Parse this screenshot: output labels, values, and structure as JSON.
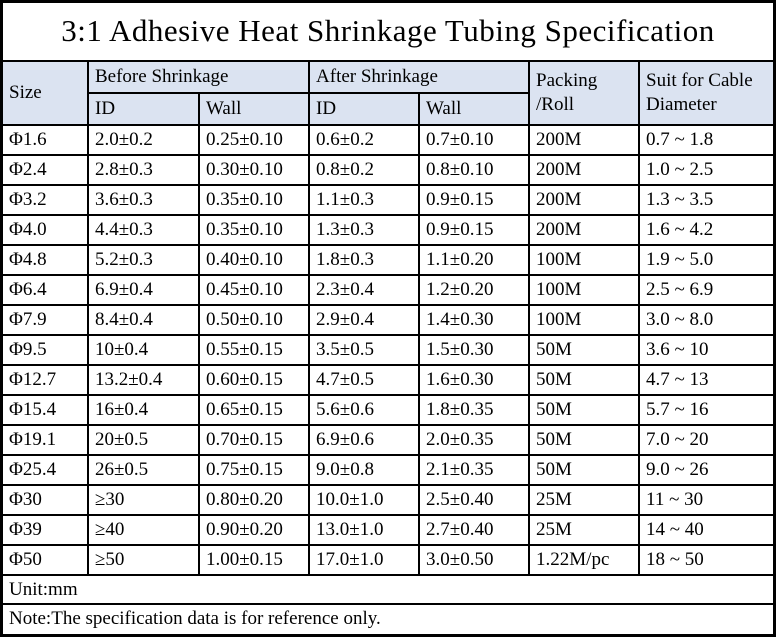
{
  "title": "3:1 Adhesive Heat Shrinkage Tubing Specification",
  "colors": {
    "header_bg": "#dbe3f1",
    "border": "#000000",
    "text": "#000000",
    "background": "#ffffff"
  },
  "table": {
    "header": {
      "size": "Size",
      "before_shrinkage": "Before Shrinkage",
      "after_shrinkage": "After Shrinkage",
      "id": "ID",
      "wall": "Wall",
      "packing_line1": "Packing",
      "packing_line2": "/Roll",
      "cable_line1": "Suit for Cable",
      "cable_line2": "Diameter"
    },
    "rows": [
      [
        "Φ1.6",
        "2.0±0.2",
        "0.25±0.10",
        "0.6±0.2",
        "0.7±0.10",
        "200M",
        "0.7 ~ 1.8"
      ],
      [
        "Φ2.4",
        "2.8±0.3",
        "0.30±0.10",
        "0.8±0.2",
        "0.8±0.10",
        "200M",
        "1.0 ~ 2.5"
      ],
      [
        "Φ3.2",
        "3.6±0.3",
        "0.35±0.10",
        "1.1±0.3",
        "0.9±0.15",
        "200M",
        "1.3 ~ 3.5"
      ],
      [
        "Φ4.0",
        "4.4±0.3",
        "0.35±0.10",
        "1.3±0.3",
        "0.9±0.15",
        "200M",
        "1.6 ~ 4.2"
      ],
      [
        "Φ4.8",
        "5.2±0.3",
        "0.40±0.10",
        "1.8±0.3",
        "1.1±0.20",
        "100M",
        "1.9 ~ 5.0"
      ],
      [
        "Φ6.4",
        "6.9±0.4",
        "0.45±0.10",
        "2.3±0.4",
        "1.2±0.20",
        "100M",
        "2.5 ~ 6.9"
      ],
      [
        "Φ7.9",
        "8.4±0.4",
        "0.50±0.10",
        "2.9±0.4",
        "1.4±0.30",
        "100M",
        "3.0 ~ 8.0"
      ],
      [
        "Φ9.5",
        "10±0.4",
        "0.55±0.15",
        "3.5±0.5",
        "1.5±0.30",
        "50M",
        "3.6 ~ 10"
      ],
      [
        "Φ12.7",
        "13.2±0.4",
        "0.60±0.15",
        "4.7±0.5",
        "1.6±0.30",
        "50M",
        "4.7 ~ 13"
      ],
      [
        "Φ15.4",
        "16±0.4",
        "0.65±0.15",
        "5.6±0.6",
        "1.8±0.35",
        "50M",
        "5.7 ~ 16"
      ],
      [
        "Φ19.1",
        "20±0.5",
        "0.70±0.15",
        "6.9±0.6",
        "2.0±0.35",
        "50M",
        "7.0 ~ 20"
      ],
      [
        "Φ25.4",
        "26±0.5",
        "0.75±0.15",
        "9.0±0.8",
        "2.1±0.35",
        "50M",
        "9.0 ~ 26"
      ],
      [
        "Φ30",
        "≥30",
        "0.80±0.20",
        "10.0±1.0",
        "2.5±0.40",
        "25M",
        "11 ~ 30"
      ],
      [
        "Φ39",
        "≥40",
        "0.90±0.20",
        "13.0±1.0",
        "2.7±0.40",
        "25M",
        "14 ~ 40"
      ],
      [
        "Φ50",
        "≥50",
        "1.00±0.15",
        "17.0±1.0",
        "3.0±0.50",
        "1.22M/pc",
        "18 ~ 50"
      ]
    ],
    "footer": {
      "unit": "Unit:mm",
      "note": "Note:The specification data is for reference only."
    }
  }
}
